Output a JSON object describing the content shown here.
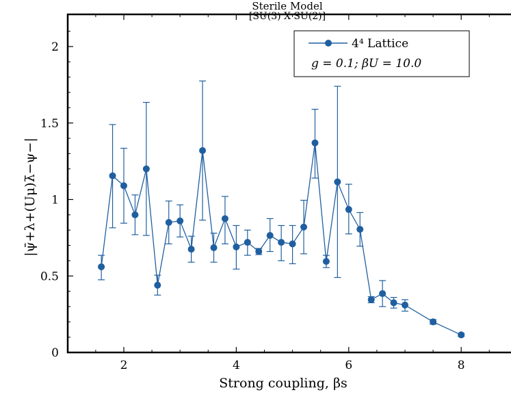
{
  "chart_data": {
    "type": "line",
    "title": "Sterile Model",
    "subtitle": "[SU(3) X SU(2)]",
    "xlabel": "Strong coupling, βs",
    "ylabel": "|ψ̄+λ+(Uμ)λ̄−ψ−|",
    "xlim": [
      1,
      8.7
    ],
    "ylim": [
      0,
      2.2
    ],
    "x_ticks": [
      2,
      4,
      6,
      8
    ],
    "y_ticks": [
      0,
      0.5,
      1,
      1.5,
      2
    ],
    "x_tick_labels": [
      "2",
      "4",
      "6",
      "8"
    ],
    "y_tick_labels": [
      "0",
      "0.5",
      "1",
      "1.5",
      "2"
    ],
    "grid": false,
    "legend_position": "top-right",
    "legend_note": "g = 0.1;  βU = 10.0",
    "series": [
      {
        "name": "4⁴ Lattice",
        "color": "#1f5fa0",
        "x": [
          1.6,
          1.8,
          2.0,
          2.2,
          2.4,
          2.6,
          2.8,
          3.0,
          3.2,
          3.4,
          3.6,
          3.8,
          4.0,
          4.2,
          4.4,
          4.6,
          4.8,
          5.0,
          5.2,
          5.4,
          5.6,
          5.8,
          6.0,
          6.2,
          6.4,
          6.6,
          6.8,
          7.0,
          7.5,
          8.0
        ],
        "y": [
          0.56,
          1.155,
          1.09,
          0.9,
          1.2,
          0.44,
          0.85,
          0.86,
          0.675,
          1.32,
          0.685,
          0.875,
          0.69,
          0.72,
          0.66,
          0.765,
          0.72,
          0.71,
          0.82,
          1.37,
          0.595,
          1.115,
          0.935,
          0.805,
          0.345,
          0.385,
          0.325,
          0.31,
          0.2,
          0.115
        ],
        "y_err_low": [
          0.475,
          0.815,
          0.845,
          0.77,
          0.765,
          0.375,
          0.71,
          0.755,
          0.59,
          0.865,
          0.59,
          0.71,
          0.545,
          0.635,
          0.64,
          0.66,
          0.6,
          0.58,
          0.645,
          1.14,
          0.555,
          0.49,
          0.775,
          0.695,
          0.325,
          0.3,
          0.29,
          0.27,
          0.185,
          0.105
        ],
        "y_err_high": [
          0.635,
          1.49,
          1.335,
          1.03,
          1.635,
          0.505,
          0.99,
          0.965,
          0.76,
          1.775,
          0.78,
          1.02,
          0.83,
          0.8,
          0.68,
          0.875,
          0.83,
          0.83,
          0.995,
          1.59,
          0.635,
          1.74,
          1.1,
          0.915,
          0.365,
          0.47,
          0.36,
          0.345,
          0.215,
          0.125
        ]
      }
    ]
  }
}
